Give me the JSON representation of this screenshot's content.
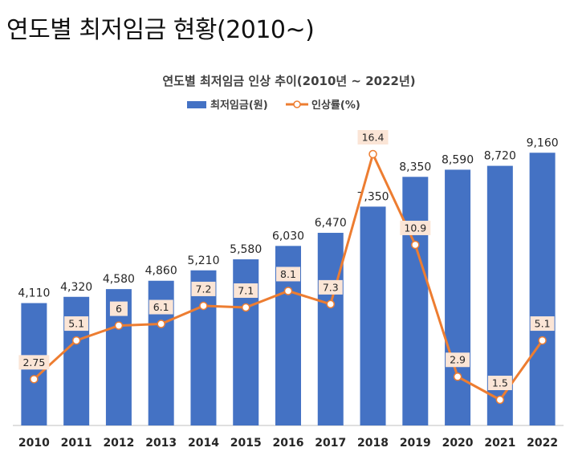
{
  "page": {
    "title": "연도별 최저임금 현황(2010~)"
  },
  "colors": {
    "bar": "#4472C4",
    "line": "#ED7D31",
    "marker_fill": "#ffffff",
    "label_box": "#FBE5D6",
    "axis": "#BFBFBF",
    "text": "#262626"
  },
  "chart_data": {
    "type": "bar",
    "title": "연도별 최저임금 인상 추이(2010년 ~ 2022년)",
    "legend_position": "top",
    "categories": [
      "2010",
      "2011",
      "2012",
      "2013",
      "2014",
      "2015",
      "2016",
      "2017",
      "2018",
      "2019",
      "2020",
      "2021",
      "2022"
    ],
    "series": [
      {
        "name": "최저임금(원)",
        "type": "bar",
        "values": [
          4110,
          4320,
          4580,
          4860,
          5210,
          5580,
          6030,
          6470,
          7350,
          8350,
          8590,
          8720,
          9160
        ],
        "labels": [
          "4,110",
          "4,320",
          "4,580",
          "4,860",
          "5,210",
          "5,580",
          "6,030",
          "6,470",
          "7,350",
          "8,350",
          "8,590",
          "8,720",
          "9,160"
        ]
      },
      {
        "name": "인상률(%)",
        "type": "line",
        "values": [
          2.75,
          5.1,
          6,
          6.1,
          7.2,
          7.1,
          8.1,
          7.3,
          16.4,
          10.9,
          2.9,
          1.5,
          5.1
        ],
        "labels": [
          "2.75",
          "5.1",
          "6",
          "6.1",
          "7.2",
          "7.1",
          "8.1",
          "7.3",
          "16.4",
          "10.9",
          "2.9",
          "1.5",
          "5.1"
        ]
      }
    ],
    "bar_axis": {
      "min": 0,
      "max": 9500
    },
    "line_axis": {
      "min": 0,
      "max": 19
    },
    "grid": false
  }
}
